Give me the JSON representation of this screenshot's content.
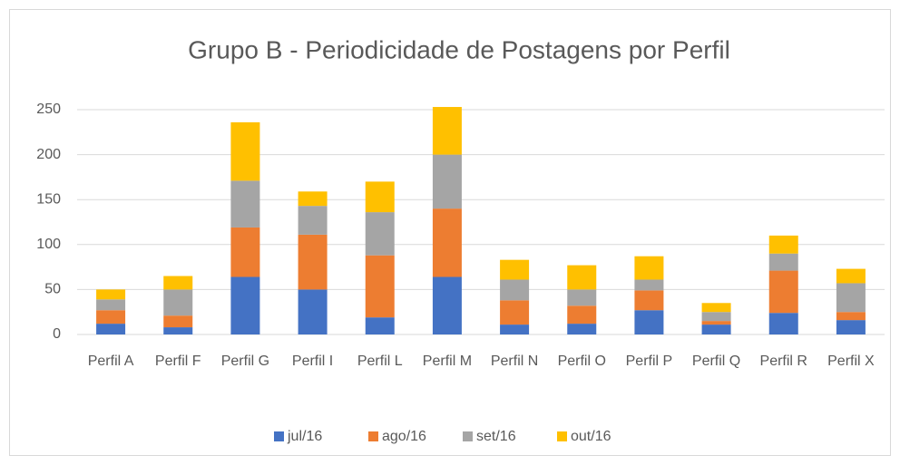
{
  "chart_data": {
    "type": "stacked_bar",
    "title": "Grupo B - Periodicidade de Postagens por Perfil",
    "categories": [
      "Perfil A",
      "Perfil F",
      "Perfil G",
      "Perfil I",
      "Perfil L",
      "Perfil M",
      "Perfil N",
      "Perfil O",
      "Perfil P",
      "Perfil Q",
      "Perfil R",
      "Perfil X"
    ],
    "series": [
      {
        "name": "jul/16",
        "color": "#4472c4",
        "values": [
          12,
          8,
          64,
          50,
          19,
          64,
          11,
          12,
          27,
          11,
          24,
          16
        ]
      },
      {
        "name": "ago/16",
        "color": "#ed7d31",
        "values": [
          15,
          13,
          55,
          61,
          69,
          76,
          27,
          20,
          22,
          4,
          47,
          9
        ]
      },
      {
        "name": "set/16",
        "color": "#a5a5a5",
        "values": [
          12,
          29,
          52,
          32,
          48,
          60,
          23,
          18,
          12,
          10,
          19,
          32
        ]
      },
      {
        "name": "out/16",
        "color": "#ffc000",
        "values": [
          11,
          15,
          65,
          16,
          34,
          53,
          22,
          27,
          26,
          10,
          20,
          16
        ]
      }
    ],
    "ylim": [
      0,
      250
    ],
    "yticks": [
      0,
      50,
      100,
      150,
      200,
      250
    ],
    "grid": true,
    "legend": "bottom"
  }
}
